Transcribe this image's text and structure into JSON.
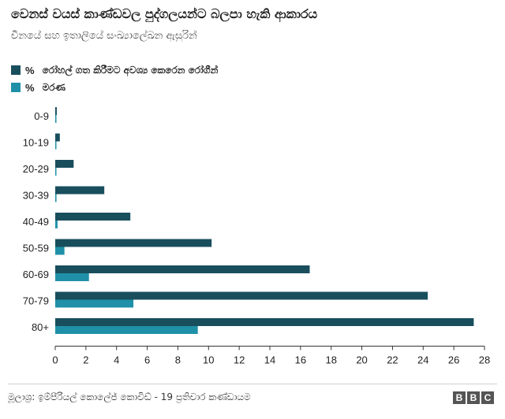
{
  "title": "වෙනස් වයස් කාණ්ඩවල පුද්ගලයන්ට බලපා හැකි ආකාරය",
  "subtitle": "චීනයේ සහ ඉතාලියේ සංඛ්‍යාලේඛන ඇසුරින්",
  "legend": [
    {
      "symbol": "%",
      "name": "රෝහල් ගත කිරීමට අවශ්‍ය කෙරෙන රෝගීන්",
      "color": "#194e5d"
    },
    {
      "symbol": "%",
      "name": "මරණ",
      "color": "#1f90a8"
    }
  ],
  "source": "මූලාශ්‍ර: ඉම්පීරියල් කොලේජ් කොවිඩ් - 19 ප්‍රතිචාර කණ්ඩායම",
  "brand": [
    "B",
    "B",
    "C"
  ],
  "chart_data": {
    "type": "bar",
    "orientation": "horizontal",
    "categories": [
      "0-9",
      "10-19",
      "20-29",
      "30-39",
      "40-49",
      "50-59",
      "60-69",
      "70-79",
      "80+"
    ],
    "series": [
      {
        "name": "රෝහල් ගත කිරීමට අවශ්‍ය කෙරෙන රෝගීන්",
        "color": "#194e5d",
        "values": [
          0.1,
          0.3,
          1.2,
          3.2,
          4.9,
          10.2,
          16.6,
          24.3,
          27.3
        ]
      },
      {
        "name": "මරණ",
        "color": "#1f90a8",
        "values": [
          0.002,
          0.006,
          0.03,
          0.08,
          0.15,
          0.6,
          2.2,
          5.1,
          9.3
        ]
      }
    ],
    "xlim": [
      0,
      28
    ],
    "xticks": [
      0,
      2,
      4,
      6,
      8,
      10,
      12,
      14,
      16,
      18,
      20,
      22,
      24,
      26,
      28
    ],
    "grid": false,
    "legend_position": "top-left"
  }
}
